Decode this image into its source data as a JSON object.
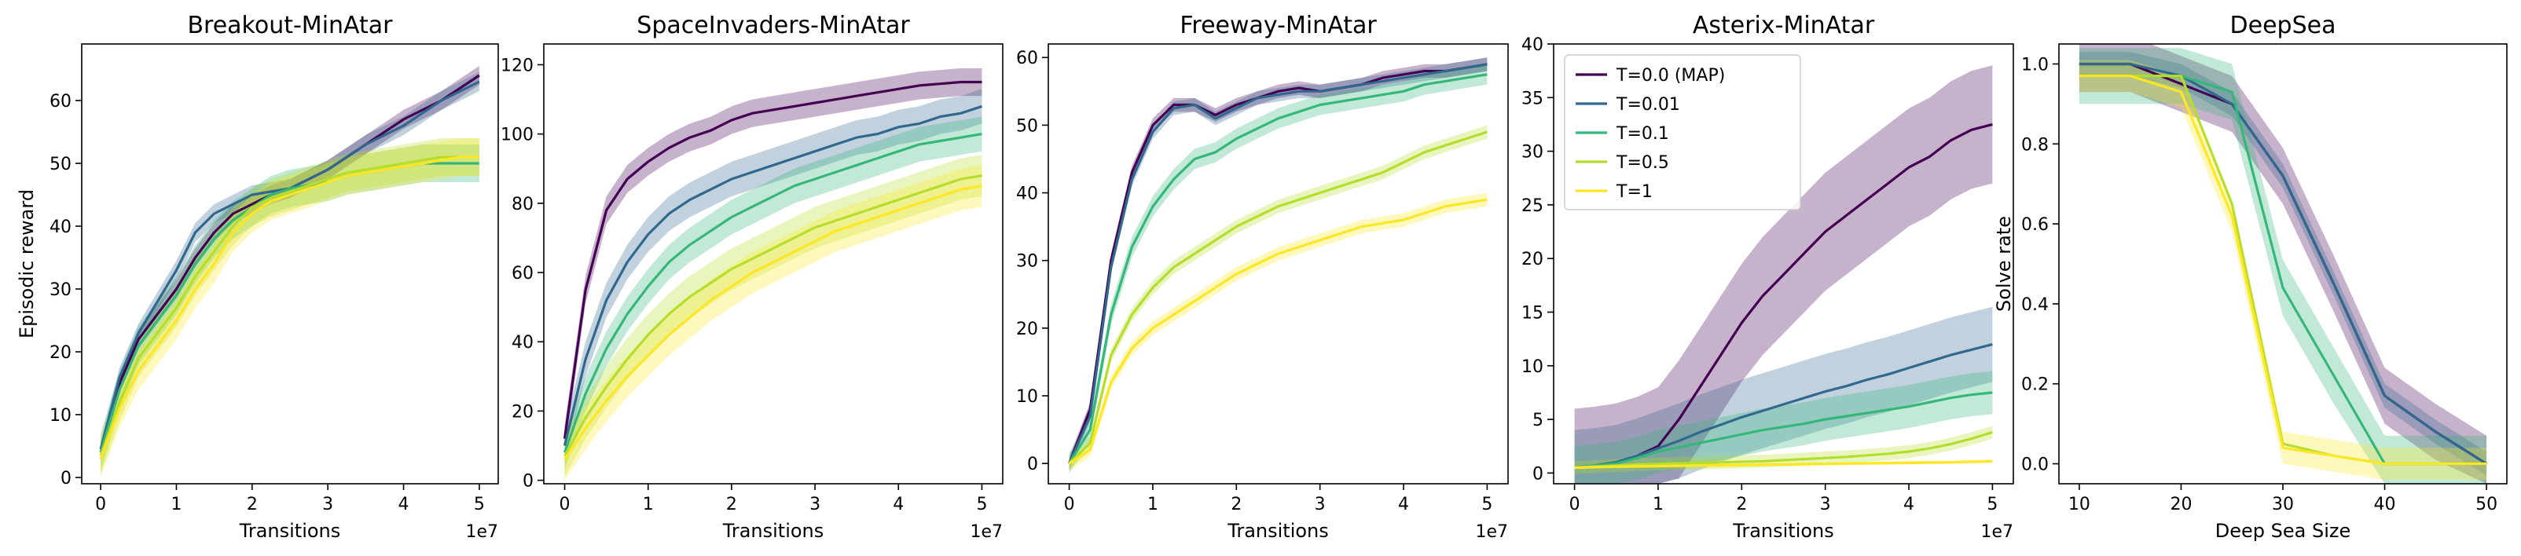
{
  "colors": {
    "T=0.0 (MAP)": "#440154",
    "T=0.01": "#31688e",
    "T=0.1": "#35b779",
    "T=0.5": "#b5de2b",
    "T=1": "#fde725"
  },
  "chart_data": [
    {
      "type": "line",
      "title": "Breakout-MinAtar",
      "xlabel": "Transitions",
      "ylabel": "Episodic reward",
      "x_offset_label": "1e7",
      "xlim": [
        -0.25,
        5.25
      ],
      "ylim": [
        -1,
        69
      ],
      "xticks": [
        0,
        1,
        2,
        3,
        4,
        5
      ],
      "yticks": [
        0,
        10,
        20,
        30,
        40,
        50,
        60
      ],
      "x": [
        0,
        0.25,
        0.5,
        0.75,
        1,
        1.25,
        1.5,
        1.75,
        2,
        2.25,
        2.5,
        2.75,
        3,
        3.25,
        3.5,
        3.75,
        4,
        4.25,
        4.5,
        4.75,
        5
      ],
      "band_widths": [
        1.5,
        1.5,
        3,
        3,
        3,
        3
      ],
      "series": [
        {
          "name": "T=0.0 (MAP)",
          "values": [
            4,
            15,
            22,
            26,
            30,
            35,
            39,
            42,
            43.5,
            45,
            46,
            47.5,
            49,
            51,
            53,
            55,
            57,
            58.5,
            60,
            62,
            64
          ]
        },
        {
          "name": "T=0.01",
          "values": [
            4.5,
            16,
            23,
            28,
            33,
            39,
            42,
            43.5,
            45,
            45.5,
            46,
            47.5,
            49,
            51,
            53,
            54.5,
            56,
            58,
            60,
            61.5,
            63
          ]
        },
        {
          "name": "T=0.1",
          "values": [
            4,
            14,
            21,
            25,
            29,
            34,
            38,
            41,
            43,
            45,
            46,
            46.5,
            47,
            48,
            48.5,
            49,
            49.5,
            50,
            50,
            50,
            50
          ]
        },
        {
          "name": "T=0.5",
          "values": [
            3.5,
            12,
            19,
            23,
            27,
            32,
            36,
            40,
            43,
            44.5,
            45.5,
            46.5,
            47.5,
            48.5,
            49,
            49.5,
            50,
            50.5,
            51,
            51,
            51
          ]
        },
        {
          "name": "T=1",
          "values": [
            3,
            11,
            17,
            21,
            25,
            30,
            34,
            39,
            42,
            44,
            45,
            46,
            47,
            48,
            48.5,
            49,
            49.5,
            50,
            50.5,
            51,
            51
          ]
        }
      ]
    },
    {
      "type": "line",
      "title": "SpaceInvaders-MinAtar",
      "xlabel": "Transitions",
      "ylabel": "",
      "x_offset_label": "1e7",
      "xlim": [
        -0.25,
        5.25
      ],
      "ylim": [
        -1,
        126
      ],
      "xticks": [
        0,
        1,
        2,
        3,
        4,
        5
      ],
      "yticks": [
        0,
        20,
        40,
        60,
        80,
        100,
        120
      ],
      "x": [
        0,
        0.25,
        0.5,
        0.75,
        1,
        1.25,
        1.5,
        1.75,
        2,
        2.25,
        2.5,
        2.75,
        3,
        3.25,
        3.5,
        3.75,
        4,
        4.25,
        4.5,
        4.75,
        5
      ],
      "band_widths": [
        4,
        5,
        5,
        6,
        6
      ],
      "series": [
        {
          "name": "T=0.0 (MAP)",
          "values": [
            12,
            55,
            78,
            87,
            92,
            96,
            99,
            101,
            104,
            106,
            107,
            108,
            109,
            110,
            111,
            112,
            113,
            114,
            114.5,
            115,
            115
          ]
        },
        {
          "name": "T=0.01",
          "values": [
            10,
            35,
            52,
            63,
            71,
            77,
            81,
            84,
            87,
            89,
            91,
            93,
            95,
            97,
            99,
            100,
            102,
            103,
            105,
            106,
            108
          ]
        },
        {
          "name": "T=0.1",
          "values": [
            8,
            25,
            38,
            48,
            56,
            63,
            68,
            72,
            76,
            79,
            82,
            85,
            87,
            89,
            91,
            93,
            95,
            97,
            98,
            99,
            100
          ]
        },
        {
          "name": "T=0.5",
          "values": [
            7,
            18,
            27,
            35,
            42,
            48,
            53,
            57,
            61,
            64,
            67,
            70,
            73,
            75,
            77,
            79,
            81,
            83,
            85,
            87,
            88
          ]
        },
        {
          "name": "T=1",
          "values": [
            6,
            15,
            23,
            30,
            36,
            42,
            47,
            52,
            56,
            60,
            63,
            66,
            69,
            72,
            74,
            76,
            78,
            80,
            82,
            84,
            85
          ]
        }
      ]
    },
    {
      "type": "line",
      "title": "Freeway-MinAtar",
      "xlabel": "Transitions",
      "ylabel": "",
      "x_offset_label": "1e7",
      "xlim": [
        -0.25,
        5.25
      ],
      "ylim": [
        -3,
        62
      ],
      "xticks": [
        0,
        1,
        2,
        3,
        4,
        5
      ],
      "yticks": [
        0,
        10,
        20,
        30,
        40,
        50,
        60
      ],
      "x": [
        0,
        0.25,
        0.5,
        0.75,
        1,
        1.25,
        1.5,
        1.75,
        2,
        2.25,
        2.5,
        2.75,
        3,
        3.25,
        3.5,
        3.75,
        4,
        4.25,
        4.5,
        4.75,
        5
      ],
      "band_widths": [
        1,
        1,
        1.5,
        1,
        1
      ],
      "series": [
        {
          "name": "T=0.0 (MAP)",
          "values": [
            0,
            8,
            30,
            43,
            50,
            53,
            53,
            51.5,
            53,
            54,
            55,
            55.5,
            55,
            55.5,
            56,
            57,
            57.5,
            58,
            58,
            58.5,
            59
          ]
        },
        {
          "name": "T=0.01",
          "values": [
            0,
            7,
            29,
            42,
            49,
            52.5,
            53,
            51,
            52.5,
            54,
            54.5,
            55,
            55,
            55.5,
            56,
            56.5,
            57,
            57.5,
            58,
            58.5,
            59
          ]
        },
        {
          "name": "T=0.1",
          "values": [
            0,
            5,
            22,
            32,
            38,
            42,
            45,
            46,
            48,
            49.5,
            51,
            52,
            53,
            53.5,
            54,
            54.5,
            55,
            56,
            56.5,
            57,
            57.5
          ]
        },
        {
          "name": "T=0.5",
          "values": [
            0,
            3,
            16,
            22,
            26,
            29,
            31,
            33,
            35,
            36.5,
            38,
            39,
            40,
            41,
            42,
            43,
            44.5,
            46,
            47,
            48,
            49
          ]
        },
        {
          "name": "T=1",
          "values": [
            0,
            2,
            12,
            17,
            20,
            22,
            24,
            26,
            28,
            29.5,
            31,
            32,
            33,
            34,
            35,
            35.5,
            36,
            37,
            38,
            38.5,
            39
          ]
        }
      ]
    },
    {
      "type": "line",
      "title": "Asterix-MinAtar",
      "xlabel": "Transitions",
      "ylabel": "",
      "x_offset_label": "1e7",
      "xlim": [
        -0.25,
        5.25
      ],
      "ylim": [
        -1,
        40
      ],
      "xticks": [
        0,
        1,
        2,
        3,
        4,
        5
      ],
      "yticks": [
        0,
        5,
        10,
        15,
        20,
        25,
        30,
        35,
        40
      ],
      "x": [
        0,
        0.25,
        0.5,
        0.75,
        1,
        1.25,
        1.5,
        1.75,
        2,
        2.25,
        2.5,
        2.75,
        3,
        3.25,
        3.5,
        3.75,
        4,
        4.25,
        4.5,
        4.75,
        5
      ],
      "band_widths": [
        5.5,
        3.5,
        2,
        0.6,
        0.15
      ],
      "series": [
        {
          "name": "T=0.0 (MAP)",
          "values": [
            0.5,
            0.7,
            1.0,
            1.6,
            2.5,
            5,
            8,
            11,
            14,
            16.5,
            18.5,
            20.5,
            22.5,
            24,
            25.5,
            27,
            28.5,
            29.5,
            31,
            32,
            32.5
          ]
        },
        {
          "name": "T=0.01",
          "values": [
            0.5,
            0.7,
            1.0,
            1.6,
            2.3,
            3,
            3.8,
            4.5,
            5.2,
            5.8,
            6.4,
            7,
            7.6,
            8.1,
            8.7,
            9.2,
            9.8,
            10.4,
            11,
            11.5,
            12
          ]
        },
        {
          "name": "T=0.1",
          "values": [
            0.5,
            0.7,
            0.9,
            1.4,
            2.0,
            2.4,
            2.8,
            3.2,
            3.6,
            4.0,
            4.3,
            4.6,
            5.0,
            5.3,
            5.6,
            5.9,
            6.2,
            6.6,
            7.0,
            7.3,
            7.5
          ]
        },
        {
          "name": "T=0.5",
          "values": [
            0.5,
            0.6,
            0.7,
            0.8,
            0.85,
            0.9,
            0.95,
            1.0,
            1.05,
            1.1,
            1.2,
            1.3,
            1.4,
            1.5,
            1.65,
            1.8,
            2.0,
            2.3,
            2.7,
            3.2,
            3.8
          ]
        },
        {
          "name": "T=1",
          "values": [
            0.5,
            0.55,
            0.6,
            0.62,
            0.65,
            0.68,
            0.7,
            0.72,
            0.75,
            0.78,
            0.8,
            0.83,
            0.85,
            0.88,
            0.9,
            0.93,
            0.95,
            0.98,
            1.0,
            1.05,
            1.1
          ]
        }
      ],
      "legend": "top-left"
    },
    {
      "type": "line",
      "title": "DeepSea",
      "xlabel": "Deep Sea Size",
      "ylabel": "Solve rate",
      "x_offset_label": "",
      "xlim": [
        8,
        52
      ],
      "ylim": [
        -0.05,
        1.05
      ],
      "xticks": [
        10,
        20,
        30,
        40,
        50
      ],
      "yticks": [
        0.0,
        0.2,
        0.4,
        0.6,
        0.8,
        1.0
      ],
      "ytick_format": "fixed1",
      "x": [
        10,
        15,
        20,
        25,
        30,
        35,
        40,
        45,
        50
      ],
      "band_widths": [
        0.07,
        0.03,
        0.07,
        0,
        0.04
      ],
      "series": [
        {
          "name": "T=0.0 (MAP)",
          "values": [
            1.0,
            1.0,
            0.95,
            0.9,
            0.72,
            0.45,
            0.17,
            0.08,
            0.0
          ]
        },
        {
          "name": "T=0.01",
          "values": [
            1.0,
            1.0,
            0.97,
            0.9,
            0.72,
            0.45,
            0.17,
            0.08,
            0.0
          ]
        },
        {
          "name": "T=0.1",
          "values": [
            0.97,
            0.97,
            0.97,
            0.93,
            0.44,
            0.22,
            0.0,
            0.0,
            0.0
          ]
        },
        {
          "name": "T=0.5",
          "values": [
            0.97,
            0.97,
            0.97,
            0.65,
            0.05,
            0.02,
            0.0,
            0.0,
            0.0
          ]
        },
        {
          "name": "T=1",
          "values": [
            0.97,
            0.97,
            0.93,
            0.62,
            0.04,
            0.02,
            0.0,
            0.0,
            0.0
          ]
        }
      ]
    }
  ]
}
